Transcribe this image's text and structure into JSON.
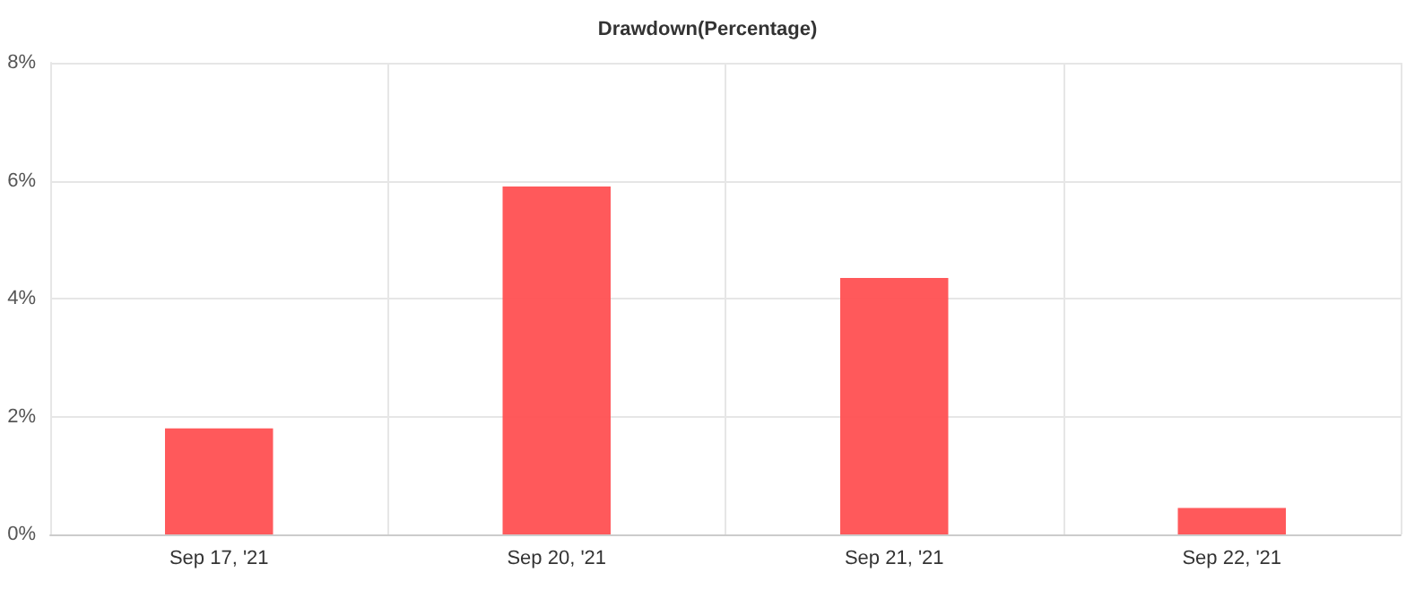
{
  "chart_data": {
    "type": "bar",
    "title": "Drawdown(Percentage)",
    "categories": [
      "Sep 17, '21",
      "Sep 20, '21",
      "Sep 21, '21",
      "Sep 22, '21"
    ],
    "values": [
      1.8,
      5.9,
      4.35,
      0.45
    ],
    "color": "#ff5052",
    "ylim": [
      0,
      8
    ],
    "yticks": [
      {
        "value": 0,
        "label": "0%"
      },
      {
        "value": 2,
        "label": "2%"
      },
      {
        "value": 4,
        "label": "4%"
      },
      {
        "value": 6,
        "label": "6%"
      },
      {
        "value": 8,
        "label": "8%"
      }
    ],
    "grid": true
  }
}
